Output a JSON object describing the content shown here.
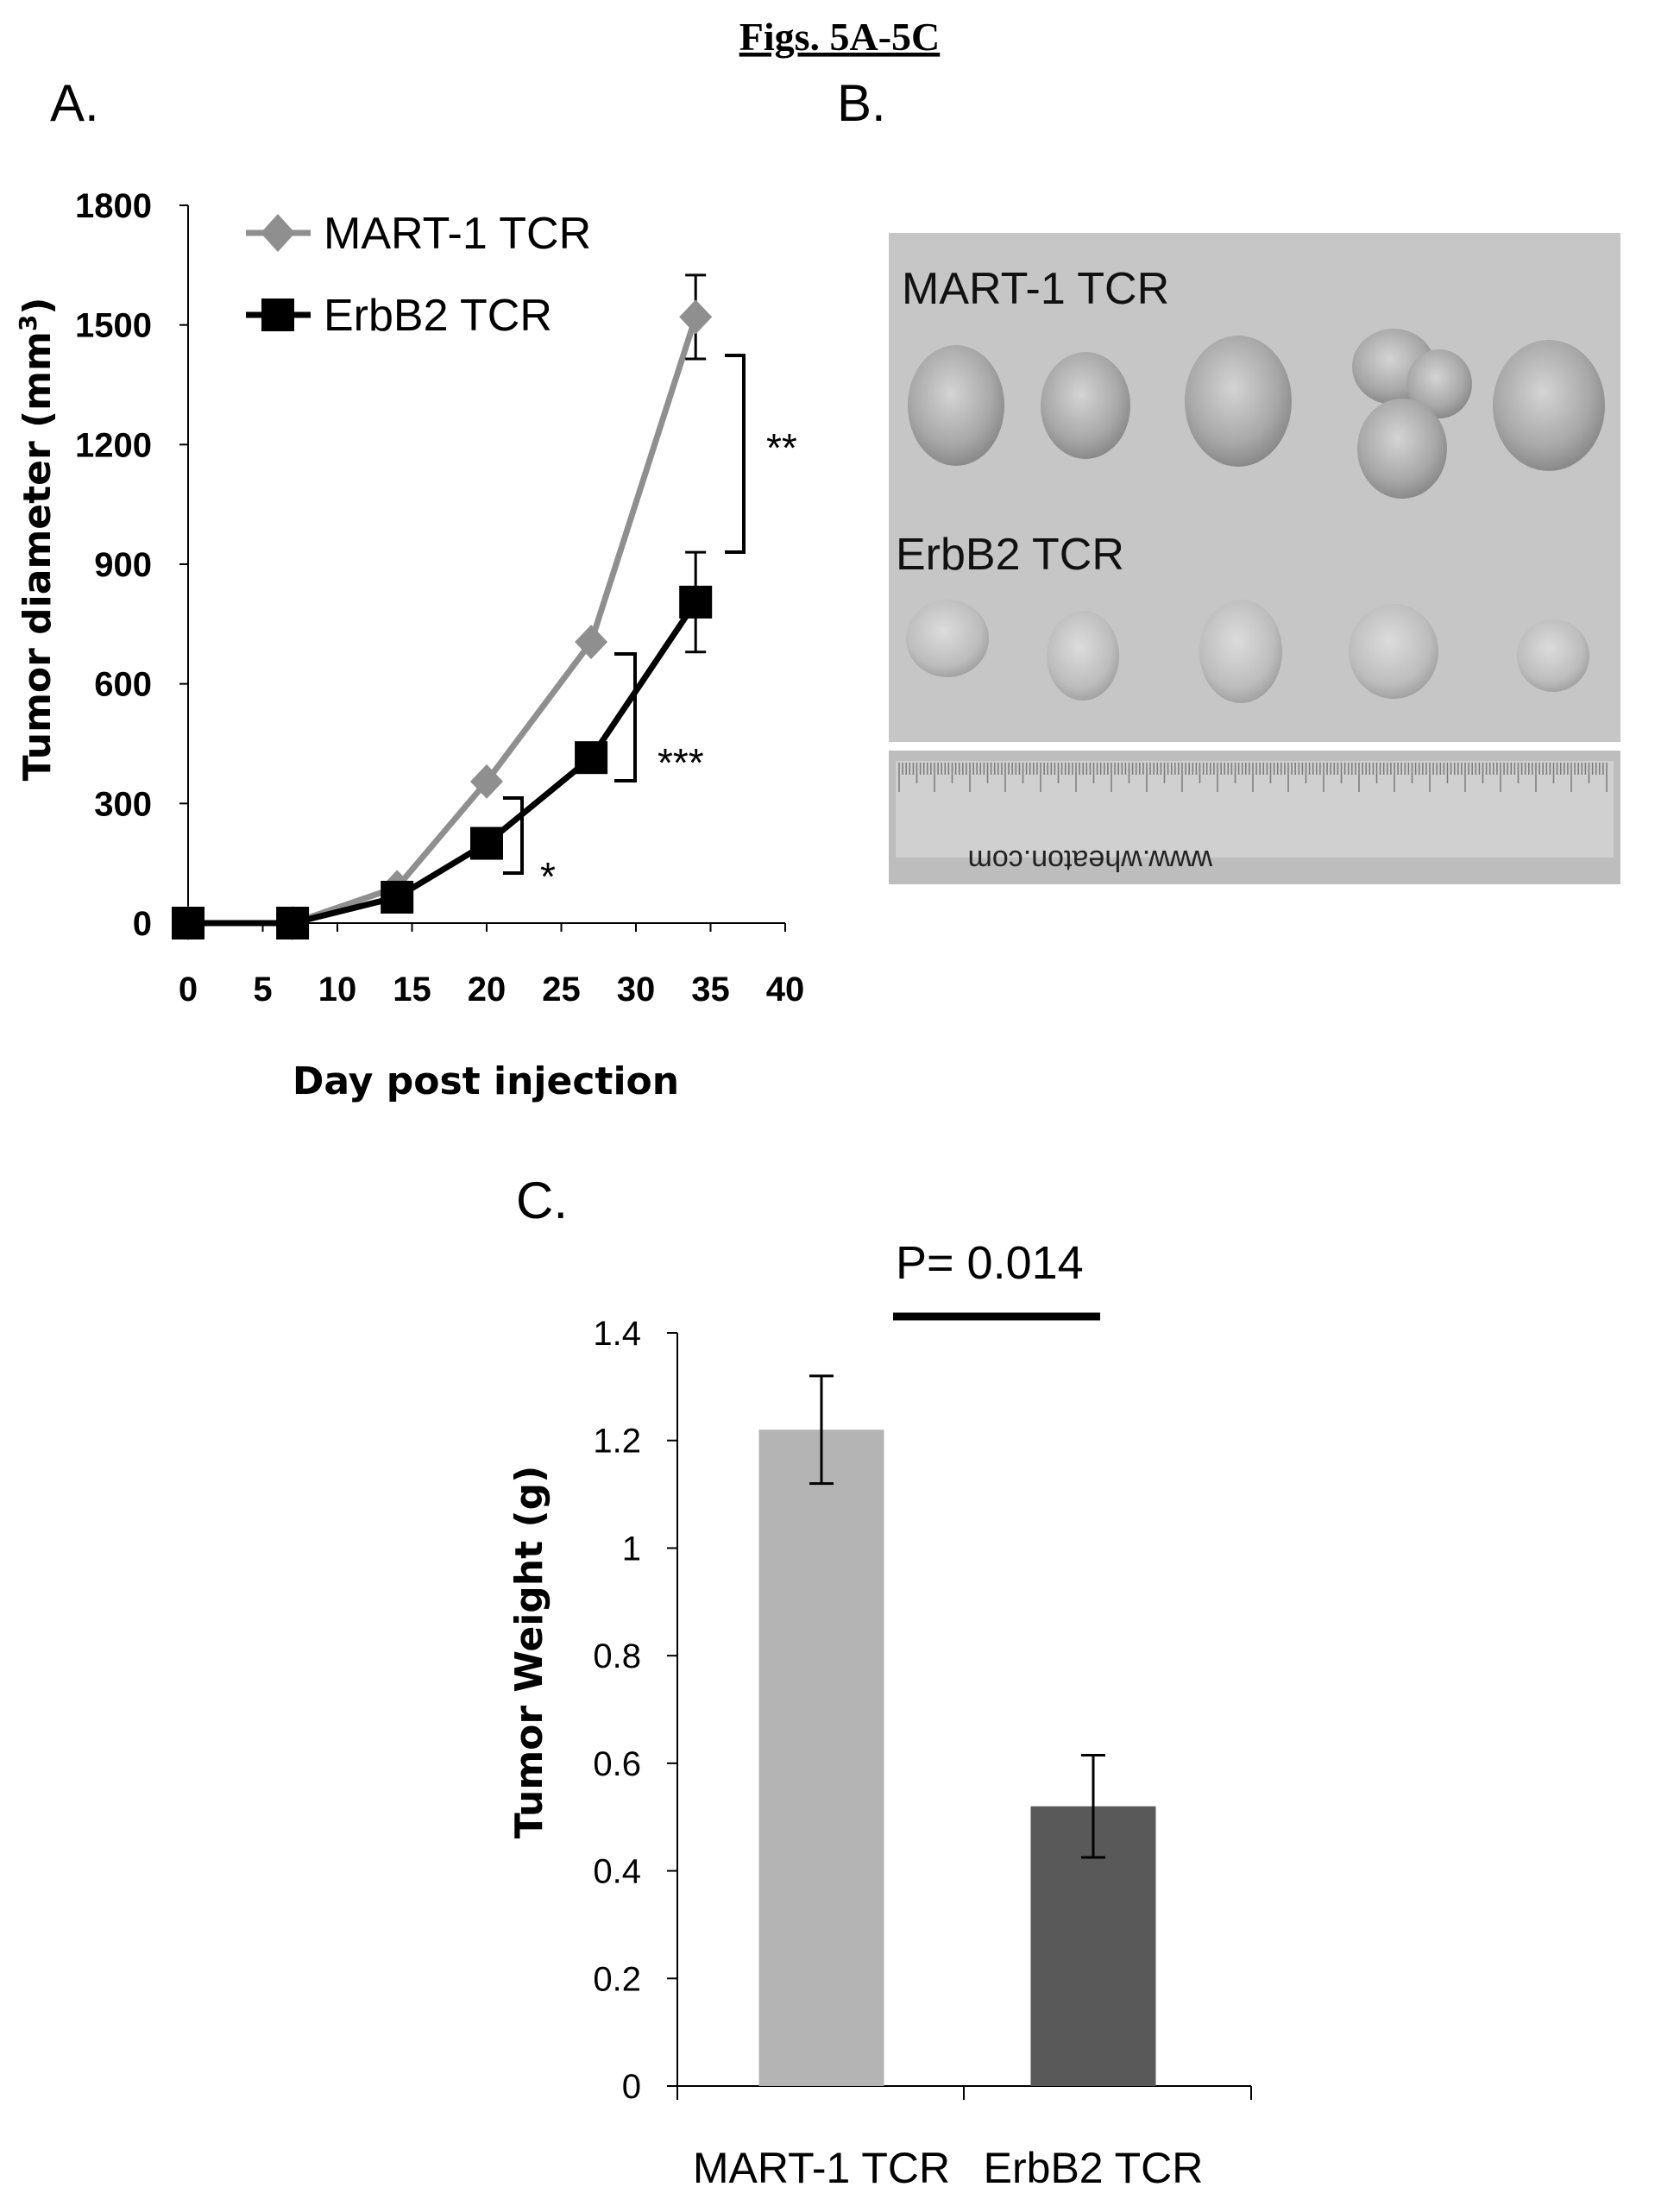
{
  "figure_title": "Figs. 5A-5C",
  "panels": {
    "a": "A.",
    "b": "B.",
    "c": "C."
  },
  "photo": {
    "group1_label": "MART-1 TCR",
    "group2_label": "ErbB2 TCR",
    "ruler_text": "www.wheaton.com"
  },
  "significance": {
    "day34": "**",
    "day27": "***",
    "day20": "*",
    "pvalue": "P= 0.014"
  },
  "colors": {
    "mart1": "#8f8f8f",
    "erbb2": "#000000",
    "bar1": "#b4b4b4",
    "bar2": "#595959"
  },
  "chart_data": [
    {
      "type": "line",
      "xlabel": "Day post injection",
      "ylabel": "Tumor diameter (mm3)",
      "ylabel_text": "Tumor diameter (mm",
      "ylabel_sup": "3",
      "xlim": [
        0,
        40
      ],
      "ylim": [
        0,
        1800
      ],
      "xticks": [
        0,
        5,
        10,
        15,
        20,
        25,
        30,
        35,
        40
      ],
      "yticks": [
        0,
        300,
        600,
        900,
        1200,
        1500,
        1800
      ],
      "grid": false,
      "legend": "top-left",
      "series": [
        {
          "name": "MART-1 TCR",
          "x": [
            0,
            7,
            14,
            20,
            27,
            34
          ],
          "y": [
            0,
            0,
            90,
            355,
            705,
            1520
          ],
          "error": [
            0,
            0,
            0,
            0,
            0,
            105
          ],
          "marker": "diamond"
        },
        {
          "name": "ErbB2 TCR",
          "x": [
            0,
            7,
            14,
            20,
            27,
            34
          ],
          "y": [
            0,
            0,
            65,
            200,
            415,
            805
          ],
          "error": [
            0,
            0,
            0,
            0,
            0,
            125
          ],
          "marker": "square"
        }
      ]
    },
    {
      "type": "bar",
      "categories": [
        "MART-1 TCR",
        "ErbB2 TCR"
      ],
      "values": [
        1.22,
        0.52
      ],
      "errors": [
        0.1,
        0.095
      ],
      "ylabel": "Tumor Weight (g)",
      "xlabel": "",
      "ylim": [
        0,
        1.4
      ],
      "yticks": [
        0,
        0.2,
        0.4,
        0.6,
        0.8,
        1,
        1.2,
        1.4
      ],
      "ytick_labels": [
        "0",
        "0.2",
        "0.4",
        "0.6",
        "0.8",
        "1",
        "1.2",
        "1.4"
      ],
      "grid": false
    }
  ]
}
